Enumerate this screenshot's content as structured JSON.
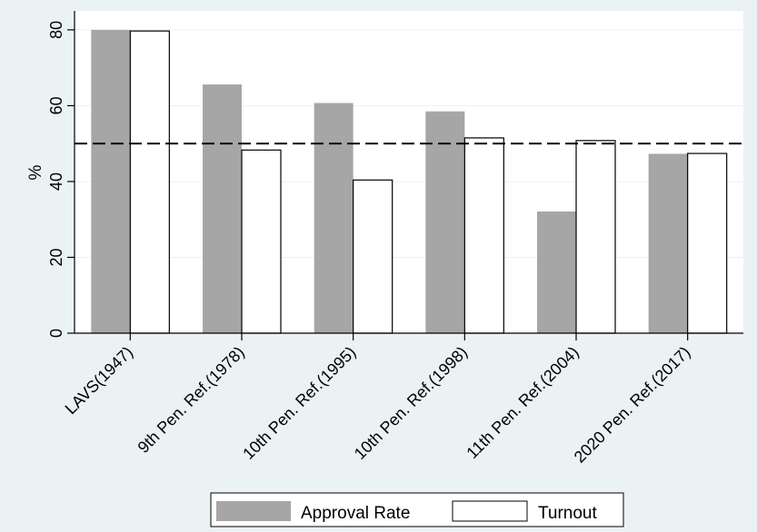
{
  "chart_data": {
    "type": "bar",
    "title": "",
    "xlabel": "",
    "ylabel": "%",
    "ylim": [
      0,
      85
    ],
    "yticks": [
      0,
      20,
      40,
      60,
      80
    ],
    "categories": [
      "LAVS(1947)",
      "9th Pen. Ref.(1978)",
      "10th Pen. Ref.(1995)",
      "10th Pen. Ref.(1998)",
      "11th Pen. Ref.(2004)",
      "2020 Pen. Ref.(2017)"
    ],
    "series": [
      {
        "name": "Approval Rate",
        "values": [
          80.0,
          65.6,
          60.7,
          58.5,
          32.1,
          47.3
        ],
        "color": "#a6a6a6"
      },
      {
        "name": "Turnout",
        "values": [
          79.7,
          48.3,
          40.4,
          51.5,
          50.8,
          47.4
        ],
        "color": "#ffffff"
      }
    ],
    "reference_line": {
      "value": 50,
      "style": "dashed"
    },
    "grid": true,
    "legend_position": "bottom"
  },
  "colors": {
    "background": "#eaf2f3",
    "plot_background": "#ffffff",
    "grid": "#eaf2f3",
    "bar_outline": "#000000"
  }
}
